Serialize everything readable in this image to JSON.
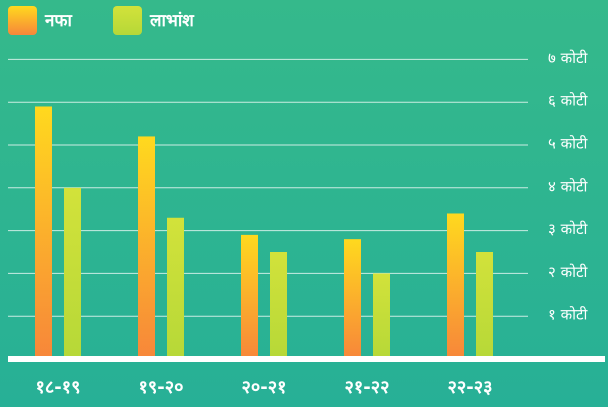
{
  "chart_data": {
    "type": "bar",
    "categories": [
      "१८-१९",
      "१९-२०",
      "२०-२१",
      "२१-२२",
      "२२-२३"
    ],
    "series": [
      {
        "name": "नफा",
        "color": "#ffd91e",
        "gradient_to": "#f7863a",
        "values": [
          5.9,
          5.2,
          2.9,
          2.8,
          3.4
        ]
      },
      {
        "name": "लाभांश",
        "color": "#d2e23a",
        "gradient_to": "#b6d838",
        "values": [
          4.0,
          3.3,
          2.5,
          2.0,
          2.5
        ]
      }
    ],
    "ylim": [
      0,
      7.3
    ],
    "yticks": [
      {
        "value": 1,
        "label": "१ कोटी"
      },
      {
        "value": 2,
        "label": "२ कोटी"
      },
      {
        "value": 3,
        "label": "३ कोटी"
      },
      {
        "value": 4,
        "label": "४ कोटी"
      },
      {
        "value": 5,
        "label": "५ कोटी"
      },
      {
        "value": 6,
        "label": "६ कोटी"
      },
      {
        "value": 7,
        "label": "७ कोटी"
      }
    ],
    "grid": true,
    "legend": "top-left"
  }
}
